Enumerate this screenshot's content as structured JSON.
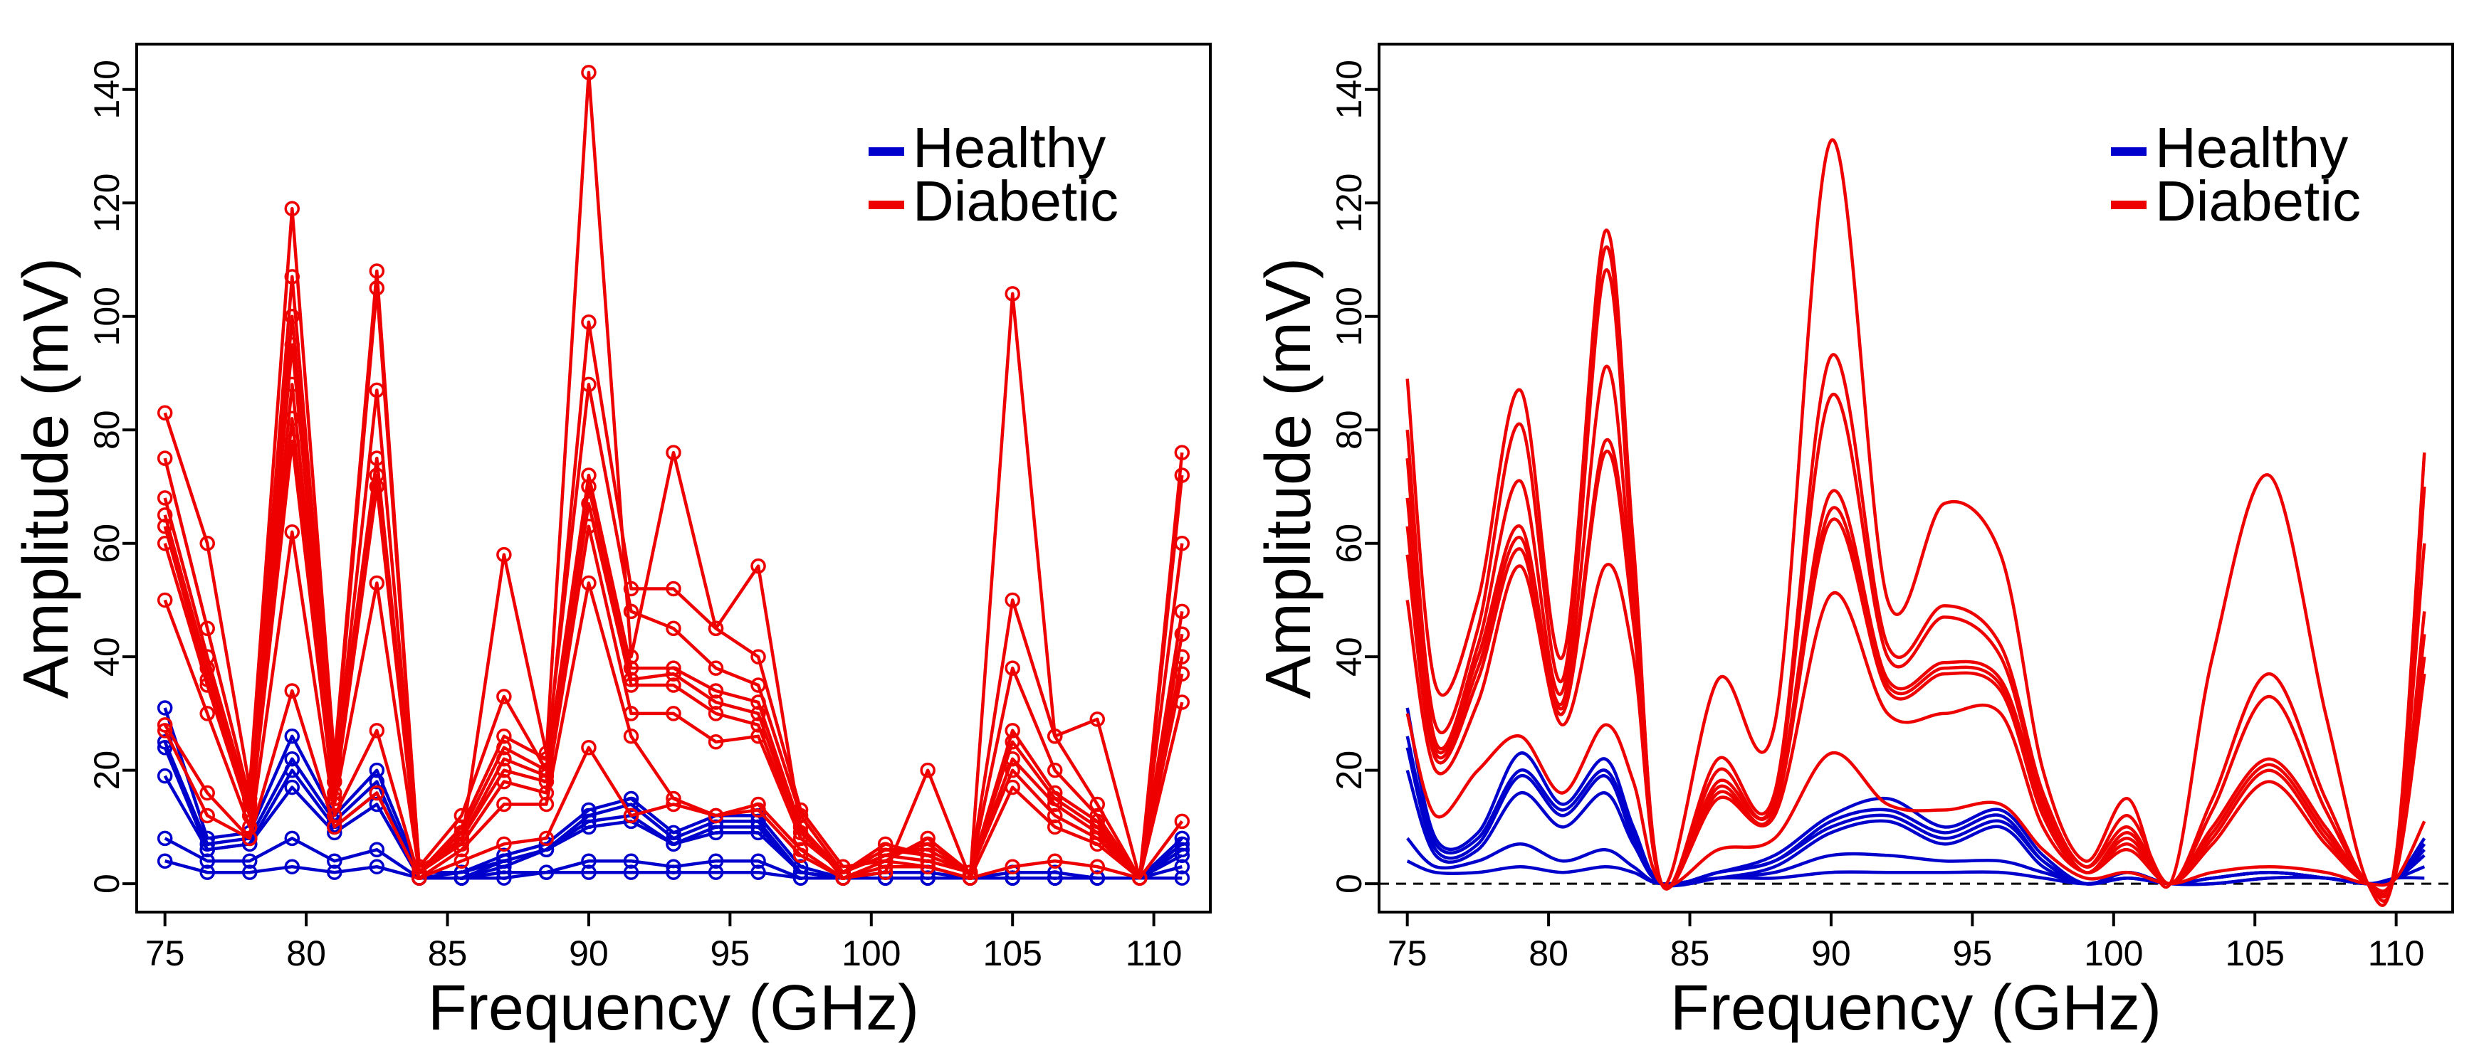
{
  "chart_data": [
    {
      "type": "line",
      "panel": "left",
      "markers": true,
      "xlabel": "Frequency (GHz)",
      "ylabel": "Amplitude (mV)",
      "xlim": [
        74,
        112
      ],
      "ylim": [
        -5,
        148
      ],
      "xticks": [
        75,
        80,
        85,
        90,
        95,
        100,
        105,
        110
      ],
      "yticks": [
        0,
        20,
        40,
        60,
        80,
        100,
        120,
        140
      ],
      "zero_line": false,
      "legend": {
        "position": "top-right",
        "entries": [
          {
            "label": "Healthy",
            "color": "#0000cc"
          },
          {
            "label": "Diabetic",
            "color": "#ee0000"
          }
        ]
      },
      "x": [
        75,
        76.5,
        78,
        79.5,
        81,
        82.5,
        84,
        85.5,
        87,
        88.5,
        90,
        91.5,
        93,
        94.5,
        96,
        97.5,
        99,
        100.5,
        102,
        103.5,
        105,
        106.5,
        108,
        109.5,
        111
      ],
      "series": [
        {
          "name": "Healthy",
          "color": "#0000cc",
          "values": [
            31,
            8,
            9,
            26,
            12,
            20,
            2,
            2,
            5,
            7,
            13,
            15,
            9,
            12,
            12,
            3,
            1,
            2,
            2,
            1,
            2,
            2,
            1,
            1,
            8
          ]
        },
        {
          "name": "Healthy",
          "color": "#0000cc",
          "values": [
            25,
            7,
            8,
            22,
            11,
            18,
            1,
            2,
            4,
            6,
            12,
            14,
            8,
            11,
            11,
            2,
            1,
            1,
            1,
            1,
            1,
            1,
            1,
            1,
            7
          ]
        },
        {
          "name": "Healthy",
          "color": "#0000cc",
          "values": [
            24,
            6,
            7,
            20,
            10,
            16,
            1,
            1,
            4,
            6,
            11,
            12,
            7,
            10,
            10,
            2,
            1,
            1,
            1,
            1,
            1,
            1,
            1,
            1,
            6
          ]
        },
        {
          "name": "Healthy",
          "color": "#0000cc",
          "values": [
            19,
            6,
            7,
            17,
            9,
            14,
            1,
            1,
            3,
            6,
            10,
            11,
            7,
            9,
            9,
            2,
            1,
            1,
            1,
            1,
            1,
            1,
            1,
            1,
            5
          ]
        },
        {
          "name": "Healthy",
          "color": "#0000cc",
          "values": [
            8,
            4,
            4,
            8,
            4,
            6,
            1,
            1,
            2,
            2,
            4,
            4,
            3,
            4,
            4,
            1,
            1,
            1,
            1,
            1,
            1,
            1,
            1,
            1,
            3
          ]
        },
        {
          "name": "Healthy",
          "color": "#0000cc",
          "values": [
            4,
            2,
            2,
            3,
            2,
            3,
            1,
            1,
            1,
            2,
            2,
            2,
            2,
            2,
            2,
            1,
            1,
            1,
            1,
            1,
            1,
            1,
            1,
            1,
            1
          ]
        },
        {
          "name": "Diabetic",
          "color": "#ee0000",
          "values": [
            83,
            60,
            17,
            119,
            22,
            108,
            3,
            7,
            58,
            23,
            143,
            40,
            76,
            45,
            56,
            10,
            1,
            2,
            20,
            1,
            104,
            26,
            29,
            1,
            76
          ]
        },
        {
          "name": "Diabetic",
          "color": "#ee0000",
          "values": [
            75,
            45,
            15,
            107,
            20,
            105,
            3,
            12,
            33,
            20,
            99,
            52,
            52,
            45,
            40,
            13,
            3,
            4,
            8,
            2,
            50,
            26,
            14,
            1,
            72
          ]
        },
        {
          "name": "Diabetic",
          "color": "#ee0000",
          "values": [
            68,
            40,
            14,
            100,
            18,
            87,
            2,
            10,
            26,
            22,
            88,
            48,
            45,
            38,
            35,
            12,
            2,
            5,
            7,
            2,
            38,
            20,
            12,
            1,
            60
          ]
        },
        {
          "name": "Diabetic",
          "color": "#ee0000",
          "values": [
            65,
            38,
            13,
            95,
            18,
            75,
            2,
            9,
            24,
            20,
            72,
            38,
            38,
            34,
            32,
            10,
            2,
            6,
            6,
            2,
            27,
            16,
            11,
            1,
            48
          ]
        },
        {
          "name": "Diabetic",
          "color": "#ee0000",
          "values": [
            63,
            36,
            12,
            88,
            16,
            72,
            2,
            8,
            22,
            19,
            70,
            36,
            37,
            32,
            30,
            9,
            2,
            7,
            5,
            2,
            25,
            15,
            10,
            1,
            44
          ]
        },
        {
          "name": "Diabetic",
          "color": "#ee0000",
          "values": [
            60,
            35,
            12,
            82,
            15,
            70,
            2,
            8,
            20,
            18,
            67,
            35,
            35,
            30,
            28,
            8,
            2,
            6,
            5,
            2,
            22,
            14,
            9,
            1,
            40
          ]
        },
        {
          "name": "Diabetic",
          "color": "#ee0000",
          "values": [
            50,
            30,
            10,
            78,
            14,
            53,
            2,
            7,
            18,
            16,
            63,
            30,
            30,
            25,
            26,
            8,
            2,
            5,
            4,
            2,
            20,
            12,
            8,
            1,
            37
          ]
        },
        {
          "name": "Diabetic",
          "color": "#ee0000",
          "values": [
            28,
            16,
            8,
            62,
            12,
            27,
            1,
            6,
            14,
            14,
            53,
            26,
            15,
            12,
            14,
            6,
            1,
            4,
            3,
            1,
            17,
            10,
            7,
            1,
            32
          ]
        },
        {
          "name": "Diabetic",
          "color": "#ee0000",
          "values": [
            27,
            12,
            8,
            34,
            10,
            16,
            1,
            4,
            7,
            8,
            24,
            12,
            14,
            12,
            13,
            5,
            1,
            3,
            3,
            1,
            3,
            4,
            3,
            1,
            11
          ]
        }
      ]
    },
    {
      "type": "line",
      "panel": "right",
      "markers": false,
      "xlabel": "Frequency (GHz)",
      "ylabel": "Amplitude (mV)",
      "xlim": [
        74,
        112
      ],
      "ylim": [
        -5,
        148
      ],
      "xticks": [
        75,
        80,
        85,
        90,
        95,
        100,
        105,
        110
      ],
      "yticks": [
        0,
        20,
        40,
        60,
        80,
        100,
        120,
        140
      ],
      "zero_line": true,
      "legend": {
        "position": "top-right",
        "entries": [
          {
            "label": "Healthy",
            "color": "#0000cc"
          },
          {
            "label": "Diabetic",
            "color": "#ee0000"
          }
        ]
      },
      "x": [
        75,
        76,
        77.5,
        79,
        80.5,
        82,
        83,
        84,
        86,
        88,
        90,
        92,
        94,
        96,
        97.5,
        99,
        100.5,
        102,
        103.5,
        105.5,
        107.5,
        109,
        110,
        111
      ],
      "series": [
        {
          "name": "Healthy",
          "color": "#0000cc",
          "values": [
            31,
            8,
            9,
            23,
            14,
            22,
            10,
            0,
            2,
            5,
            12,
            15,
            10,
            13,
            5,
            0,
            2,
            0,
            1,
            2,
            1,
            0,
            1,
            8
          ]
        },
        {
          "name": "Healthy",
          "color": "#0000cc",
          "values": [
            26,
            7,
            8,
            20,
            13,
            20,
            9,
            0,
            2,
            4,
            11,
            13,
            9,
            12,
            4,
            0,
            2,
            0,
            1,
            2,
            1,
            0,
            1,
            7
          ]
        },
        {
          "name": "Healthy",
          "color": "#0000cc",
          "values": [
            24,
            6,
            7,
            19,
            12,
            19,
            8,
            0,
            2,
            4,
            10,
            12,
            8,
            11,
            4,
            0,
            2,
            0,
            1,
            2,
            1,
            0,
            1,
            6
          ]
        },
        {
          "name": "Healthy",
          "color": "#0000cc",
          "values": [
            20,
            5,
            6,
            16,
            10,
            16,
            7,
            0,
            1,
            3,
            9,
            11,
            7,
            10,
            3,
            0,
            1,
            0,
            1,
            2,
            1,
            0,
            1,
            5
          ]
        },
        {
          "name": "Healthy",
          "color": "#0000cc",
          "values": [
            8,
            3,
            4,
            7,
            4,
            6,
            3,
            0,
            1,
            2,
            5,
            5,
            4,
            4,
            2,
            0,
            1,
            0,
            0,
            1,
            1,
            0,
            1,
            3
          ]
        },
        {
          "name": "Healthy",
          "color": "#0000cc",
          "values": [
            4,
            2,
            2,
            3,
            2,
            3,
            2,
            0,
            1,
            1,
            2,
            2,
            2,
            2,
            1,
            0,
            1,
            0,
            0,
            1,
            1,
            0,
            1,
            1
          ]
        },
        {
          "name": "Diabetic",
          "color": "#ee0000",
          "values": [
            89,
            35,
            50,
            87,
            40,
            115,
            60,
            0,
            36,
            28,
            131,
            50,
            67,
            58,
            20,
            4,
            15,
            0,
            40,
            72,
            30,
            0,
            5,
            76
          ]
        },
        {
          "name": "Diabetic",
          "color": "#ee0000",
          "values": [
            80,
            28,
            45,
            81,
            36,
            112,
            58,
            0,
            22,
            16,
            93,
            42,
            49,
            42,
            16,
            3,
            12,
            0,
            15,
            37,
            15,
            0,
            4,
            70
          ]
        },
        {
          "name": "Diabetic",
          "color": "#ee0000",
          "values": [
            75,
            25,
            42,
            71,
            34,
            108,
            55,
            0,
            20,
            15,
            86,
            40,
            47,
            40,
            15,
            3,
            10,
            0,
            13,
            33,
            13,
            0,
            4,
            60
          ]
        },
        {
          "name": "Diabetic",
          "color": "#ee0000",
          "values": [
            68,
            24,
            40,
            63,
            32,
            91,
            50,
            0,
            18,
            14,
            69,
            36,
            39,
            36,
            14,
            2,
            9,
            0,
            10,
            22,
            10,
            0,
            3,
            48
          ]
        },
        {
          "name": "Diabetic",
          "color": "#ee0000",
          "values": [
            63,
            23,
            38,
            61,
            31,
            78,
            48,
            0,
            17,
            13,
            66,
            35,
            38,
            35,
            13,
            2,
            8,
            0,
            9,
            21,
            9,
            0,
            3,
            44
          ]
        },
        {
          "name": "Diabetic",
          "color": "#ee0000",
          "values": [
            58,
            22,
            36,
            59,
            30,
            76,
            46,
            0,
            16,
            13,
            64,
            34,
            37,
            34,
            12,
            2,
            7,
            0,
            8,
            20,
            8,
            0,
            3,
            40
          ]
        },
        {
          "name": "Diabetic",
          "color": "#ee0000",
          "values": [
            50,
            20,
            32,
            56,
            28,
            56,
            40,
            0,
            15,
            12,
            51,
            30,
            30,
            30,
            10,
            2,
            6,
            0,
            7,
            18,
            7,
            0,
            2,
            37
          ]
        },
        {
          "name": "Diabetic",
          "color": "#ee0000",
          "values": [
            30,
            12,
            20,
            26,
            16,
            28,
            18,
            0,
            6,
            8,
            23,
            14,
            13,
            14,
            6,
            1,
            2,
            0,
            2,
            3,
            2,
            0,
            1,
            11
          ]
        }
      ]
    }
  ]
}
